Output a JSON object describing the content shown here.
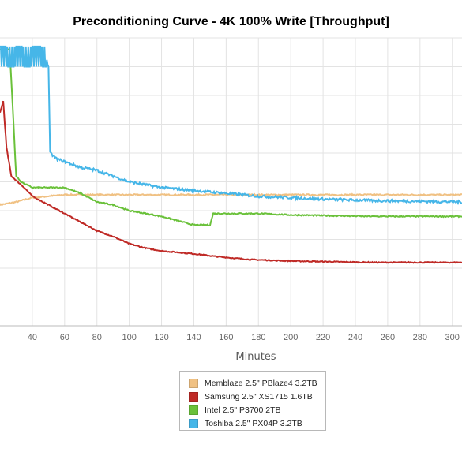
{
  "chart_data": {
    "type": "line",
    "title": "Preconditioning Curve - 4K 100% Write [Throughput]",
    "xlabel": "Minutes",
    "ylabel": "",
    "x_ticks": [
      40,
      60,
      80,
      100,
      120,
      140,
      160,
      180,
      200,
      220,
      240,
      260,
      280,
      300
    ],
    "xlim": [
      20,
      306
    ],
    "ylim": [
      0,
      100
    ],
    "grid": true,
    "legend_position": "bottom-center",
    "series": [
      {
        "name": "Memblaze 2.5\" PBlaze4 3.2TB",
        "color": "#f0c183",
        "points": [
          [
            20,
            42
          ],
          [
            30,
            43
          ],
          [
            40,
            44.5
          ],
          [
            50,
            45
          ],
          [
            60,
            45.5
          ],
          [
            80,
            45.5
          ],
          [
            100,
            45.5
          ],
          [
            150,
            45.5
          ],
          [
            200,
            45.5
          ],
          [
            250,
            45.5
          ],
          [
            306,
            45.5
          ]
        ]
      },
      {
        "name": "Samsung 2.5\" XS1715 1.6TB",
        "color": "#bf2a26",
        "points": [
          [
            20,
            74
          ],
          [
            22,
            78
          ],
          [
            24,
            62
          ],
          [
            27,
            52
          ],
          [
            30,
            50.5
          ],
          [
            35,
            48
          ],
          [
            40,
            45
          ],
          [
            50,
            42
          ],
          [
            60,
            39
          ],
          [
            70,
            36
          ],
          [
            80,
            33
          ],
          [
            90,
            31
          ],
          [
            100,
            28.5
          ],
          [
            110,
            27
          ],
          [
            120,
            26
          ],
          [
            140,
            25
          ],
          [
            155,
            24
          ],
          [
            175,
            23
          ],
          [
            200,
            22.5
          ],
          [
            250,
            22
          ],
          [
            306,
            22
          ]
        ]
      },
      {
        "name": "Intel 2.5\" P3700 2TB",
        "color": "#6ac13a",
        "points": [
          [
            20,
            96
          ],
          [
            26,
            96
          ],
          [
            27.5,
            80
          ],
          [
            30,
            52
          ],
          [
            33,
            50
          ],
          [
            40,
            48
          ],
          [
            60,
            48
          ],
          [
            70,
            46
          ],
          [
            80,
            43
          ],
          [
            90,
            42
          ],
          [
            100,
            40
          ],
          [
            120,
            38
          ],
          [
            140,
            35
          ],
          [
            150,
            35
          ],
          [
            152,
            39
          ],
          [
            155,
            39
          ],
          [
            180,
            39
          ],
          [
            200,
            38.5
          ],
          [
            250,
            38
          ],
          [
            306,
            38
          ]
        ]
      },
      {
        "name": "Toshiba 2.5\" PX04P 3.2TB",
        "color": "#46b6e8",
        "points": [
          [
            20,
            92
          ],
          [
            30,
            92
          ],
          [
            40,
            92
          ],
          [
            49,
            92
          ],
          [
            50,
            90
          ],
          [
            51,
            60
          ],
          [
            55,
            58
          ],
          [
            60,
            57
          ],
          [
            70,
            55
          ],
          [
            80,
            54
          ],
          [
            90,
            52
          ],
          [
            100,
            50
          ],
          [
            120,
            48
          ],
          [
            140,
            47
          ],
          [
            160,
            46
          ],
          [
            180,
            45
          ],
          [
            200,
            44.5
          ],
          [
            220,
            44
          ],
          [
            250,
            43.5
          ],
          [
            306,
            43
          ]
        ]
      }
    ]
  }
}
